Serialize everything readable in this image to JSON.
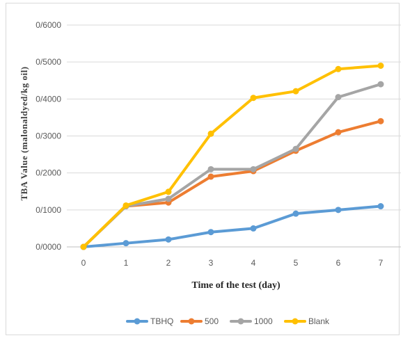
{
  "chart_data": {
    "type": "line",
    "title": "",
    "xlabel": "Time of the test (day)",
    "ylabel": "TBA Value (malonaldyed/kg oil)",
    "x": [
      0,
      1,
      2,
      3,
      4,
      5,
      6,
      7
    ],
    "x_tick_labels": [
      "0",
      "1",
      "2",
      "3",
      "4",
      "5",
      "6",
      "7"
    ],
    "ylim": [
      0,
      0.6
    ],
    "y_ticks": [
      0,
      0.1,
      0.2,
      0.3,
      0.4,
      0.5,
      0.6
    ],
    "y_tick_labels": [
      "0/0000",
      "0/1000",
      "0/2000",
      "0/3000",
      "0/4000",
      "0/5000",
      "0/6000"
    ],
    "grid": "horizontal",
    "legend_position": "bottom",
    "series": [
      {
        "name": "TBHQ",
        "color": "#5B9BD5",
        "values": [
          0.0,
          0.01,
          0.02,
          0.04,
          0.05,
          0.09,
          0.1,
          0.11
        ]
      },
      {
        "name": "500",
        "color": "#ED7D31",
        "values": [
          0.0,
          0.11,
          0.12,
          0.19,
          0.205,
          0.26,
          0.31,
          0.34
        ]
      },
      {
        "name": "1000",
        "color": "#A5A5A5",
        "values": [
          0.0,
          0.11,
          0.13,
          0.21,
          0.21,
          0.265,
          0.405,
          0.44
        ]
      },
      {
        "name": "Blank",
        "color": "#FFC000",
        "values": [
          0.0,
          0.112,
          0.149,
          0.306,
          0.403,
          0.421,
          0.481,
          0.49
        ]
      }
    ]
  }
}
